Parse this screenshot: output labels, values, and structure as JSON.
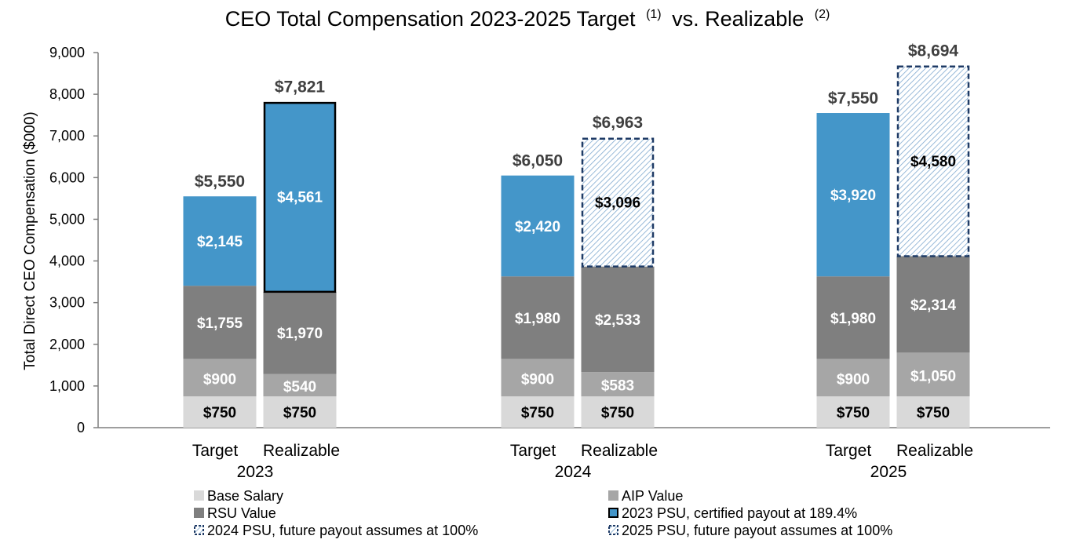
{
  "chart_data": {
    "type": "bar",
    "stacked": true,
    "title": "CEO Total Compensation 2023-2025 Target",
    "title_sup1": "(1)",
    "title_mid": "vs. Realizable",
    "title_sup2": "(2)",
    "ylabel": "Total Direct CEO Compensation ($000)",
    "ylim": [
      0,
      9000
    ],
    "yticks": [
      "0",
      "1,000",
      "2,000",
      "3,000",
      "4,000",
      "5,000",
      "6,000",
      "7,000",
      "8,000",
      "9,000"
    ],
    "groups": [
      {
        "year": "2023",
        "bars": [
          {
            "label": "Target",
            "total_label": "$5,550",
            "segments": [
              {
                "series": "Base Salary",
                "value": 750,
                "label": "$750"
              },
              {
                "series": "AIP Value",
                "value": 900,
                "label": "$900"
              },
              {
                "series": "RSU Value",
                "value": 1755,
                "label": "$1,755"
              },
              {
                "series": "PSU Target",
                "value": 2145,
                "label": "$2,145"
              }
            ]
          },
          {
            "label": "Realizable",
            "total_label": "$7,821",
            "segments": [
              {
                "series": "Base Salary",
                "value": 750,
                "label": "$750"
              },
              {
                "series": "AIP Value",
                "value": 540,
                "label": "$540"
              },
              {
                "series": "RSU Value",
                "value": 1970,
                "label": "$1,970"
              },
              {
                "series": "2023 PSU, certified payout at 189.4%",
                "value": 4561,
                "label": "$4,561"
              }
            ]
          }
        ]
      },
      {
        "year": "2024",
        "bars": [
          {
            "label": "Target",
            "total_label": "$6,050",
            "segments": [
              {
                "series": "Base Salary",
                "value": 750,
                "label": "$750"
              },
              {
                "series": "AIP Value",
                "value": 900,
                "label": "$900"
              },
              {
                "series": "RSU Value",
                "value": 1980,
                "label": "$1,980"
              },
              {
                "series": "PSU Target",
                "value": 2420,
                "label": "$2,420"
              }
            ]
          },
          {
            "label": "Realizable",
            "total_label": "$6,963",
            "segments": [
              {
                "series": "Base Salary",
                "value": 750,
                "label": "$750"
              },
              {
                "series": "AIP Value",
                "value": 583,
                "label": "$583"
              },
              {
                "series": "RSU Value",
                "value": 2533,
                "label": "$2,533"
              },
              {
                "series": "2024 PSU, future payout assumes at 100%",
                "value": 3096,
                "label": "$3,096"
              }
            ]
          }
        ]
      },
      {
        "year": "2025",
        "bars": [
          {
            "label": "Target",
            "total_label": "$7,550",
            "segments": [
              {
                "series": "Base Salary",
                "value": 750,
                "label": "$750"
              },
              {
                "series": "AIP Value",
                "value": 900,
                "label": "$900"
              },
              {
                "series": "RSU Value",
                "value": 1980,
                "label": "$1,980"
              },
              {
                "series": "PSU Target",
                "value": 3920,
                "label": "$3,920"
              }
            ]
          },
          {
            "label": "Realizable",
            "total_label": "$8,694",
            "segments": [
              {
                "series": "Base Salary",
                "value": 750,
                "label": "$750"
              },
              {
                "series": "AIP Value",
                "value": 1050,
                "label": "$1,050"
              },
              {
                "series": "RSU Value",
                "value": 2314,
                "label": "$2,314"
              },
              {
                "series": "2025 PSU, future payout assumes at 100%",
                "value": 4580,
                "label": "$4,580"
              }
            ]
          }
        ]
      }
    ],
    "series_styles": {
      "Base Salary": {
        "fill": "#d9d9d9",
        "text": "#000000"
      },
      "AIP Value": {
        "fill": "#a6a6a6",
        "text": "#ffffff"
      },
      "RSU Value": {
        "fill": "#7f7f7f",
        "text": "#ffffff"
      },
      "PSU Target": {
        "fill": "#4496c9",
        "text": "#ffffff"
      },
      "2023 PSU, certified payout at 189.4%": {
        "fill": "#4496c9",
        "text": "#ffffff",
        "outline": "solid"
      },
      "2024 PSU, future payout assumes at 100%": {
        "fill": "hatch",
        "text": "#000000",
        "outline": "dashed"
      },
      "2025 PSU, future payout assumes at 100%": {
        "fill": "hatch",
        "text": "#000000",
        "outline": "dashed"
      }
    },
    "legend": [
      {
        "label": "Base Salary",
        "swatch": "base"
      },
      {
        "label": "AIP Value",
        "swatch": "aip"
      },
      {
        "label": "RSU Value",
        "swatch": "rsu"
      },
      {
        "label": "2023 PSU, certified payout at 189.4%",
        "swatch": "psu2023"
      },
      {
        "label": "2024 PSU, future payout assumes at 100%",
        "swatch": "hatch"
      },
      {
        "label": "2025 PSU, future payout assumes at 100%",
        "swatch": "hatch"
      }
    ],
    "legend_placement": "bottom",
    "grid": false,
    "colors": {
      "base": "#d9d9d9",
      "aip": "#a6a6a6",
      "rsu": "#7f7f7f",
      "psu": "#4496c9",
      "hatch_line": "#7fa9cf",
      "dashed_outline": "#1f3b66",
      "axis": "#7f7f7f",
      "label_dark": "#404040"
    }
  }
}
